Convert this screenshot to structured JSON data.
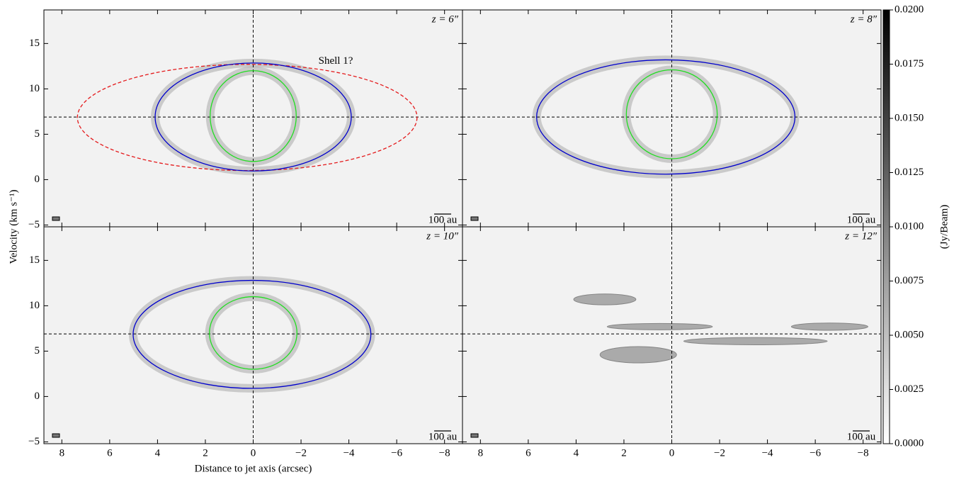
{
  "chart_data": [
    {
      "type": "pv",
      "label": "z = 6″",
      "scale_bar": "100 au",
      "annotation": {
        "text": "Shell 1?",
        "x": -3.45,
        "y": 13.05
      },
      "xlim": [
        8.75,
        -8.75
      ],
      "ylim": [
        -5.2,
        18.7
      ],
      "xticklabels": false,
      "yticklabels": true,
      "xticks": [
        8,
        6,
        4,
        2,
        0,
        {
          "value": -2,
          "label": "−2"
        },
        {
          "value": -4,
          "label": "−4"
        },
        {
          "value": -6,
          "label": "−6"
        },
        {
          "value": -8,
          "label": "−8"
        }
      ],
      "yticks": [
        {
          "value": -5,
          "label": "−5"
        },
        0,
        5,
        10,
        15
      ],
      "reference_lines": {
        "x": 0,
        "y": 6.9
      },
      "ellipses": [
        {
          "cx": 0.25,
          "cy": 6.85,
          "rx": 7.1,
          "ry": 5.85,
          "color": "#e41a1c",
          "dashed": true
        },
        {
          "cx": 0,
          "cy": 6.9,
          "rx": 4.1,
          "ry": 5.95,
          "color": "#0000cc",
          "dashed": false
        },
        {
          "cx": 0,
          "cy": 7,
          "rx": 1.8,
          "ry": 5,
          "color": "#22dd22",
          "dashed": false
        }
      ]
    },
    {
      "type": "pv",
      "label": "z = 8″",
      "scale_bar": "100 au",
      "xlim": [
        8.75,
        -8.75
      ],
      "ylim": [
        -5.2,
        18.7
      ],
      "xticklabels": false,
      "yticklabels": false,
      "xticks": [
        8,
        6,
        4,
        2,
        0,
        {
          "value": -2,
          "label": "−2"
        },
        {
          "value": -4,
          "label": "−4"
        },
        {
          "value": -6,
          "label": "−6"
        },
        {
          "value": -8,
          "label": "−8"
        }
      ],
      "yticks": [
        {
          "value": -5,
          "label": "−5"
        },
        0,
        5,
        10,
        15
      ],
      "reference_lines": {
        "x": 0,
        "y": 6.9
      },
      "ellipses": [
        {
          "cx": 0.25,
          "cy": 6.9,
          "rx": 5.4,
          "ry": 6.3,
          "color": "#0000cc",
          "dashed": false
        },
        {
          "cx": 0,
          "cy": 7.2,
          "rx": 1.9,
          "ry": 4.9,
          "color": "#22dd22",
          "dashed": false
        }
      ]
    },
    {
      "type": "pv",
      "label": "z = 10″",
      "scale_bar": "100 au",
      "xlabel": "Distance to jet axis (arcsec)",
      "ylabel": "Velocity (km s⁻¹)",
      "xlim": [
        8.75,
        -8.75
      ],
      "ylim": [
        -5.2,
        18.7
      ],
      "xticklabels": true,
      "yticklabels": true,
      "xticks": [
        8,
        6,
        4,
        2,
        0,
        {
          "value": -2,
          "label": "−2"
        },
        {
          "value": -4,
          "label": "−4"
        },
        {
          "value": -6,
          "label": "−6"
        },
        {
          "value": -8,
          "label": "−8"
        }
      ],
      "yticks": [
        {
          "value": -5,
          "label": "−5"
        },
        0,
        5,
        10,
        15
      ],
      "reference_lines": {
        "x": 0,
        "y": 6.9
      },
      "ellipses": [
        {
          "cx": 0.05,
          "cy": 6.85,
          "rx": 4.97,
          "ry": 5.95,
          "color": "#0000cc",
          "dashed": false
        },
        {
          "cx": 0,
          "cy": 7,
          "rx": 1.83,
          "ry": 4,
          "color": "#22dd22",
          "dashed": false
        }
      ]
    },
    {
      "type": "pv",
      "label": "z = 12″",
      "scale_bar": "100 au",
      "xlim": [
        8.75,
        -8.75
      ],
      "ylim": [
        -5.2,
        18.7
      ],
      "xticklabels": true,
      "yticklabels": false,
      "xticks": [
        8,
        6,
        4,
        2,
        0,
        {
          "value": -2,
          "label": "−2"
        },
        {
          "value": -4,
          "label": "−4"
        },
        {
          "value": -6,
          "label": "−6"
        },
        {
          "value": -8,
          "label": "−8"
        }
      ],
      "yticks": [
        {
          "value": -5,
          "label": "−5"
        },
        0,
        5,
        10,
        15
      ],
      "reference_lines": {
        "x": 0,
        "y": 6.9
      },
      "ellipses": []
    },
    {
      "type": "colorbar",
      "label": "(Jy/Beam)",
      "ylim": [
        0,
        0.02
      ],
      "yticks": [
        {
          "value": 0,
          "label": "0.0000"
        },
        {
          "value": 0.0025,
          "label": "0.0025"
        },
        {
          "value": 0.005,
          "label": "0.0050"
        },
        {
          "value": 0.0075,
          "label": "0.0075"
        },
        {
          "value": 0.01,
          "label": "0.0100"
        },
        {
          "value": 0.0125,
          "label": "0.0125"
        },
        {
          "value": 0.015,
          "label": "0.0150"
        },
        {
          "value": 0.0175,
          "label": "0.0175"
        },
        {
          "value": 0.02,
          "label": "0.0200"
        }
      ]
    }
  ]
}
